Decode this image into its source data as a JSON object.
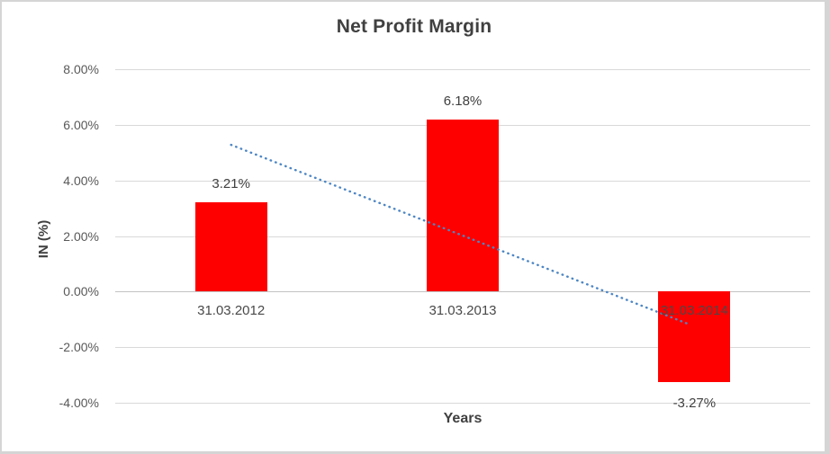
{
  "chart": {
    "title": "Net Profit Margin",
    "y_axis_title": "IN (%)",
    "x_axis_title": "Years"
  },
  "chart_data": {
    "type": "bar",
    "title": "Net Profit Margin",
    "xlabel": "Years",
    "ylabel": "IN (%)",
    "categories": [
      "31.03.2012",
      "31.03.2013",
      "31.03.2014"
    ],
    "values": [
      3.21,
      6.18,
      -3.27
    ],
    "data_labels": [
      "3.21%",
      "6.18%",
      "-3.27%"
    ],
    "ylim": [
      -4,
      8
    ],
    "ytick_step": 2,
    "ytick_labels": [
      "8.00%",
      "6.00%",
      "4.00%",
      "2.00%",
      "0.00%",
      "-2.00%",
      "-4.00%"
    ],
    "grid": true,
    "legend": false,
    "colors": {
      "bar": "#ff0000",
      "trendline": "#4d86c4",
      "gridline": "#d9d9d9",
      "zero_line": "#c3c3c3",
      "title_text": "#404040",
      "tick_text": "#595959",
      "frame_border": "#d5d5d5"
    },
    "trendline": {
      "type": "linear",
      "style": "dotted",
      "color": "#4d86c4",
      "start_value": 5.28,
      "end_value": -1.2
    }
  }
}
